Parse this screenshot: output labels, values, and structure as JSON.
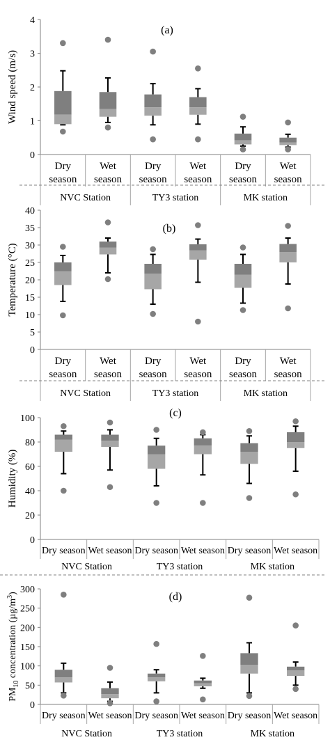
{
  "chart_data": [
    {
      "panel": "(a)",
      "type": "box",
      "ylabel": "Wind speed (m/s)",
      "ylim": [
        0,
        4
      ],
      "yticks": [
        "0",
        "1",
        "2",
        "3",
        "4"
      ],
      "categories": [
        "Dry season",
        "Wet season",
        "Dry season",
        "Wet season",
        "Dry season",
        "Wet season"
      ],
      "cat_lines": [
        [
          "Dry",
          "season"
        ],
        [
          "Wet",
          "season"
        ],
        [
          "Dry",
          "season"
        ],
        [
          "Wet",
          "season"
        ],
        [
          "Dry",
          "season"
        ],
        [
          "Wet",
          "season"
        ]
      ],
      "groups": [
        "NVC Station",
        "TY3 station",
        "MK station"
      ],
      "boxes": [
        {
          "min": 0.88,
          "q1": 0.9,
          "median": 1.18,
          "q3": 1.88,
          "max": 2.48,
          "outliers": [
            0.68,
            3.3
          ]
        },
        {
          "min": 0.95,
          "q1": 1.12,
          "median": 1.35,
          "q3": 1.85,
          "max": 2.27,
          "outliers": [
            0.8,
            3.4
          ]
        },
        {
          "min": 0.88,
          "q1": 1.15,
          "median": 1.4,
          "q3": 1.78,
          "max": 2.1,
          "outliers": [
            0.45,
            3.05
          ]
        },
        {
          "min": 0.9,
          "q1": 1.18,
          "median": 1.4,
          "q3": 1.7,
          "max": 1.95,
          "outliers": [
            0.45,
            2.55
          ]
        },
        {
          "min": 0.25,
          "q1": 0.3,
          "median": 0.42,
          "q3": 0.62,
          "max": 0.82,
          "outliers": [
            0.15,
            1.12
          ]
        },
        {
          "min": 0.22,
          "q1": 0.28,
          "median": 0.36,
          "q3": 0.5,
          "max": 0.6,
          "outliers": [
            0.15,
            0.95
          ]
        }
      ]
    },
    {
      "panel": "(b)",
      "type": "box",
      "ylabel": "Temperature (°C)",
      "ylim": [
        0,
        40
      ],
      "yticks": [
        "0",
        "5",
        "10",
        "15",
        "20",
        "25",
        "30",
        "35",
        "40"
      ],
      "categories": [
        "Dry season",
        "Wet season",
        "Dry season",
        "Wet season",
        "Dry season",
        "Wet season"
      ],
      "cat_lines": [
        [
          "Dry",
          "season"
        ],
        [
          "Wet",
          "season"
        ],
        [
          "Dry",
          "season"
        ],
        [
          "Wet",
          "season"
        ],
        [
          "Dry",
          "season"
        ],
        [
          "Wet",
          "season"
        ]
      ],
      "groups": [
        "NVC Station",
        "TY3 station",
        "MK station"
      ],
      "boxes": [
        {
          "min": 13.8,
          "q1": 18.5,
          "median": 22.5,
          "q3": 25.0,
          "max": 27.0,
          "outliers": [
            9.8,
            29.5
          ]
        },
        {
          "min": 22.0,
          "q1": 27.3,
          "median": 29.3,
          "q3": 31.0,
          "max": 32.0,
          "outliers": [
            20.2,
            36.5
          ]
        },
        {
          "min": 13.0,
          "q1": 17.3,
          "median": 21.8,
          "q3": 24.6,
          "max": 27.3,
          "outliers": [
            10.2,
            28.8
          ]
        },
        {
          "min": 19.3,
          "q1": 25.8,
          "median": 28.5,
          "q3": 30.2,
          "max": 31.7,
          "outliers": [
            8.0,
            35.7
          ]
        },
        {
          "min": 13.3,
          "q1": 17.7,
          "median": 21.5,
          "q3": 24.6,
          "max": 27.3,
          "outliers": [
            11.3,
            29.3
          ]
        },
        {
          "min": 18.8,
          "q1": 25.0,
          "median": 28.0,
          "q3": 30.3,
          "max": 32.0,
          "outliers": [
            11.8,
            35.5
          ]
        }
      ]
    },
    {
      "panel": "(c)",
      "type": "box",
      "ylabel": "Humidity (%)",
      "ylim": [
        0,
        100
      ],
      "yticks": [
        "0",
        "20",
        "40",
        "60",
        "80",
        "100"
      ],
      "categories": [
        "Dry season",
        "Wet season",
        "Dry season",
        "Wet season",
        "Dry season",
        "Wet season"
      ],
      "cat_lines": [
        [
          "Dry season"
        ],
        [
          "Wet season"
        ],
        [
          "Dry season"
        ],
        [
          "Wet season"
        ],
        [
          "Dry season"
        ],
        [
          "Wet season"
        ]
      ],
      "groups": [
        "NVC Station",
        "TY3 station",
        "MK station"
      ],
      "boxes": [
        {
          "min": 54,
          "q1": 72,
          "median": 82,
          "q3": 86,
          "max": 89,
          "outliers": [
            40,
            93
          ]
        },
        {
          "min": 57,
          "q1": 76,
          "median": 81,
          "q3": 86,
          "max": 90,
          "outliers": [
            43,
            96
          ]
        },
        {
          "min": 44,
          "q1": 58,
          "median": 70,
          "q3": 77,
          "max": 83,
          "outliers": [
            30,
            90
          ]
        },
        {
          "min": 53,
          "q1": 70,
          "median": 77,
          "q3": 83,
          "max": 86,
          "outliers": [
            30,
            88
          ]
        },
        {
          "min": 46,
          "q1": 62,
          "median": 72,
          "q3": 79,
          "max": 85,
          "outliers": [
            34,
            89
          ]
        },
        {
          "min": 56,
          "q1": 75,
          "median": 80,
          "q3": 88,
          "max": 93,
          "outliers": [
            37,
            97
          ]
        }
      ]
    },
    {
      "panel": "(d)",
      "type": "box",
      "ylabel": "PM",
      "ylabel_sub": "10",
      "ylabel_rest": " concentration (µg/m",
      "ylabel_sup": "3",
      "ylabel_end": ")",
      "ylim": [
        0,
        300
      ],
      "yticks": [
        "0",
        "50",
        "100",
        "150",
        "200",
        "250",
        "300"
      ],
      "categories": [
        "Dry season",
        "Wet season",
        "Dry season",
        "Wet season",
        "Dry season",
        "Wet season"
      ],
      "cat_lines": [
        [
          "Dry season"
        ],
        [
          "Wet season"
        ],
        [
          "Dry season"
        ],
        [
          "Wet season"
        ],
        [
          "Dry season"
        ],
        [
          "Wet season"
        ]
      ],
      "groups": [
        "NVC Station",
        "TY3 station",
        "MK station"
      ],
      "boxes": [
        {
          "min": 30,
          "q1": 57,
          "median": 70,
          "q3": 90,
          "max": 107,
          "outliers": [
            23,
            285
          ]
        },
        {
          "min": 8,
          "q1": 16,
          "median": 27,
          "q3": 42,
          "max": 58,
          "outliers": [
            3,
            95
          ]
        },
        {
          "min": 30,
          "q1": 60,
          "median": 70,
          "q3": 80,
          "max": 90,
          "outliers": [
            8,
            157
          ]
        },
        {
          "min": 42,
          "q1": 47,
          "median": 55,
          "q3": 62,
          "max": 68,
          "outliers": [
            13,
            126
          ]
        },
        {
          "min": 30,
          "q1": 80,
          "median": 103,
          "q3": 133,
          "max": 160,
          "outliers": [
            22,
            277
          ]
        },
        {
          "min": 50,
          "q1": 74,
          "median": 88,
          "q3": 98,
          "max": 110,
          "outliers": [
            40,
            205
          ]
        }
      ]
    }
  ],
  "colors": {
    "box_upper": "#7f7f7f",
    "box_lower": "#a6a6a6",
    "outlier": "#7f7f7f",
    "axis": "#808080",
    "grid_line": "#a6a6a6"
  }
}
